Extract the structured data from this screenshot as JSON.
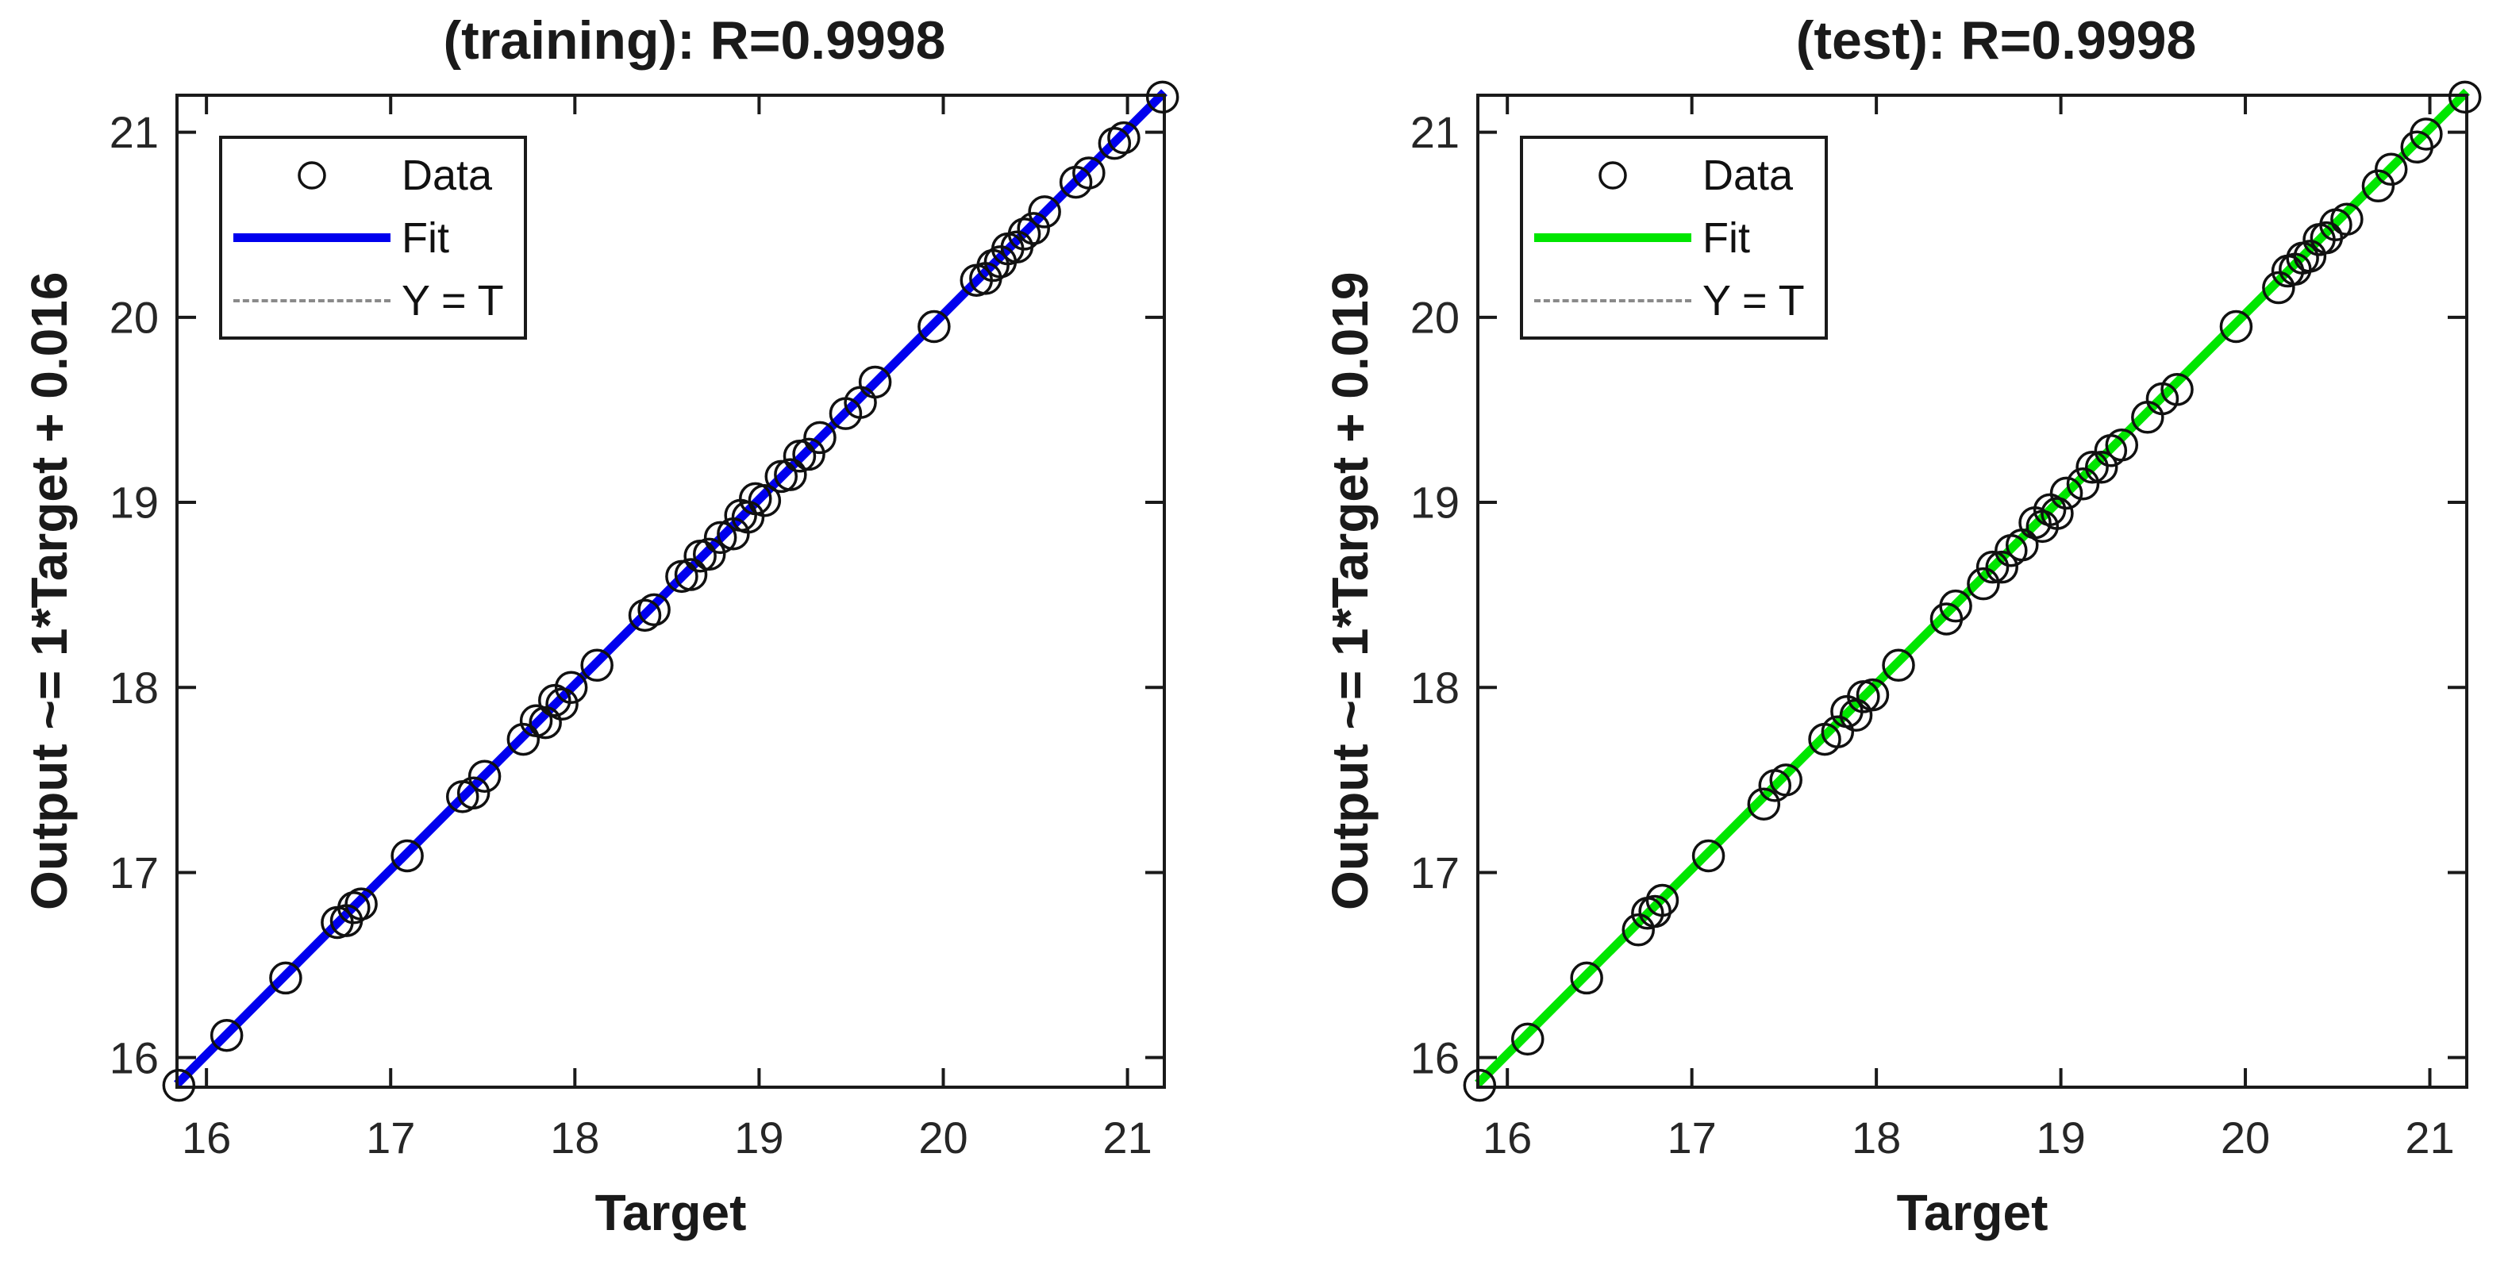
{
  "figure": {
    "background": "#ffffff",
    "spine_color": "#1a1a1a",
    "tick_label_color": "#262626"
  },
  "chart_data": [
    {
      "type": "scatter",
      "title": "(training): R=0.9998",
      "xlabel": "Target",
      "ylabel": "Output ~= 1*Target + 0.016",
      "r_value": "0.9998",
      "fit": {
        "slope": 1,
        "intercept": 0.016
      },
      "fit_color": "#0000ee",
      "identity_color": "#8a8a8a",
      "marker_color": "#111111",
      "axis_range": [
        15.84,
        21.2
      ],
      "xticks": [
        16,
        17,
        18,
        19,
        20,
        21
      ],
      "yticks": [
        16,
        17,
        18,
        19,
        20,
        21
      ],
      "grid": false,
      "legend_position": "top-left",
      "legend": [
        {
          "marker": "circle",
          "label": "Data"
        },
        {
          "marker": "line",
          "label": "Fit"
        },
        {
          "marker": "dashed",
          "label": "Y = T"
        }
      ],
      "points": [
        [
          15.85,
          15.85
        ],
        [
          16.11,
          16.12
        ],
        [
          16.43,
          16.43
        ],
        [
          16.71,
          16.73
        ],
        [
          16.76,
          16.74
        ],
        [
          16.8,
          16.81
        ],
        [
          16.84,
          16.83
        ],
        [
          17.09,
          17.09
        ],
        [
          17.39,
          17.41
        ],
        [
          17.45,
          17.43
        ],
        [
          17.51,
          17.52
        ],
        [
          17.72,
          17.72
        ],
        [
          17.79,
          17.82
        ],
        [
          17.84,
          17.81
        ],
        [
          17.89,
          17.93
        ],
        [
          17.93,
          17.91
        ],
        [
          17.98,
          18.0
        ],
        [
          18.12,
          18.12
        ],
        [
          18.38,
          18.39
        ],
        [
          18.43,
          18.42
        ],
        [
          18.58,
          18.6
        ],
        [
          18.63,
          18.61
        ],
        [
          18.68,
          18.71
        ],
        [
          18.73,
          18.72
        ],
        [
          18.79,
          18.81
        ],
        [
          18.86,
          18.83
        ],
        [
          18.9,
          18.93
        ],
        [
          18.94,
          18.92
        ],
        [
          18.98,
          19.02
        ],
        [
          19.03,
          19.01
        ],
        [
          19.12,
          19.14
        ],
        [
          19.17,
          19.15
        ],
        [
          19.22,
          19.25
        ],
        [
          19.27,
          19.26
        ],
        [
          19.33,
          19.35
        ],
        [
          19.47,
          19.48
        ],
        [
          19.55,
          19.54
        ],
        [
          19.63,
          19.65
        ],
        [
          19.95,
          19.95
        ],
        [
          20.18,
          20.2
        ],
        [
          20.23,
          20.21
        ],
        [
          20.27,
          20.28
        ],
        [
          20.31,
          20.3
        ],
        [
          20.35,
          20.37
        ],
        [
          20.4,
          20.38
        ],
        [
          20.44,
          20.45
        ],
        [
          20.49,
          20.48
        ],
        [
          20.55,
          20.57
        ],
        [
          20.72,
          20.73
        ],
        [
          20.79,
          20.78
        ],
        [
          20.93,
          20.94
        ],
        [
          20.98,
          20.97
        ],
        [
          21.19,
          21.19
        ]
      ]
    },
    {
      "type": "scatter",
      "title": "(test): R=0.9998",
      "xlabel": "Target",
      "ylabel": "Output ~= 1*Target + 0.019",
      "r_value": "0.9998",
      "fit": {
        "slope": 1,
        "intercept": 0.019
      },
      "fit_color": "#00e600",
      "identity_color": "#8a8a8a",
      "marker_color": "#111111",
      "axis_range": [
        15.84,
        21.2
      ],
      "xticks": [
        16,
        17,
        18,
        19,
        20,
        21
      ],
      "yticks": [
        16,
        17,
        18,
        19,
        20,
        21
      ],
      "grid": false,
      "legend_position": "top-left",
      "legend": [
        {
          "marker": "circle",
          "label": "Data"
        },
        {
          "marker": "line",
          "label": "Fit"
        },
        {
          "marker": "dashed",
          "label": "Y = T"
        }
      ],
      "points": [
        [
          15.85,
          15.85
        ],
        [
          16.11,
          16.1
        ],
        [
          16.43,
          16.43
        ],
        [
          16.71,
          16.69
        ],
        [
          16.76,
          16.78
        ],
        [
          16.8,
          16.79
        ],
        [
          16.84,
          16.85
        ],
        [
          17.09,
          17.09
        ],
        [
          17.39,
          17.37
        ],
        [
          17.45,
          17.47
        ],
        [
          17.51,
          17.5
        ],
        [
          17.72,
          17.72
        ],
        [
          17.79,
          17.76
        ],
        [
          17.84,
          17.87
        ],
        [
          17.89,
          17.85
        ],
        [
          17.93,
          17.95
        ],
        [
          17.98,
          17.96
        ],
        [
          18.12,
          18.12
        ],
        [
          18.38,
          18.37
        ],
        [
          18.43,
          18.44
        ],
        [
          18.58,
          18.56
        ],
        [
          18.63,
          18.65
        ],
        [
          18.68,
          18.65
        ],
        [
          18.73,
          18.74
        ],
        [
          18.79,
          18.77
        ],
        [
          18.86,
          18.89
        ],
        [
          18.9,
          18.87
        ],
        [
          18.94,
          18.96
        ],
        [
          18.98,
          18.94
        ],
        [
          19.03,
          19.05
        ],
        [
          19.12,
          19.1
        ],
        [
          19.17,
          19.19
        ],
        [
          19.22,
          19.19
        ],
        [
          19.27,
          19.28
        ],
        [
          19.33,
          19.31
        ],
        [
          19.47,
          19.46
        ],
        [
          19.55,
          19.56
        ],
        [
          19.63,
          19.61
        ],
        [
          19.95,
          19.95
        ],
        [
          20.18,
          20.16
        ],
        [
          20.23,
          20.25
        ],
        [
          20.27,
          20.26
        ],
        [
          20.31,
          20.32
        ],
        [
          20.35,
          20.33
        ],
        [
          20.4,
          20.42
        ],
        [
          20.44,
          20.43
        ],
        [
          20.49,
          20.5
        ],
        [
          20.55,
          20.53
        ],
        [
          20.72,
          20.71
        ],
        [
          20.79,
          20.8
        ],
        [
          20.93,
          20.92
        ],
        [
          20.98,
          20.99
        ],
        [
          21.19,
          21.19
        ]
      ]
    }
  ]
}
